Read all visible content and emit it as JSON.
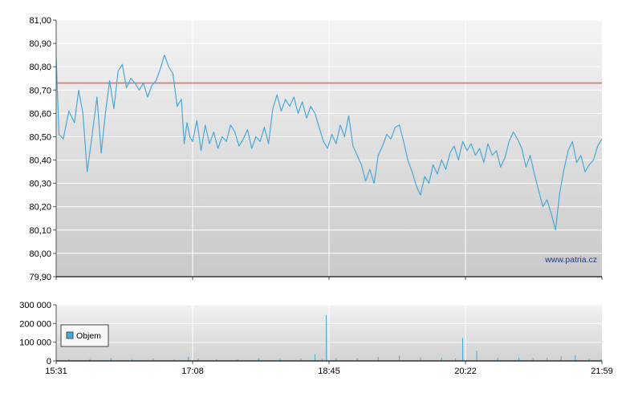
{
  "chart_data": [
    {
      "type": "line",
      "title": "",
      "xlabel": "",
      "ylabel": "",
      "ylim": [
        79.9,
        81.0
      ],
      "y_ticks": [
        79.9,
        80.0,
        80.1,
        80.2,
        80.3,
        80.4,
        80.5,
        80.6,
        80.7,
        80.8,
        80.9,
        81.0
      ],
      "y_tick_labels": [
        "79,90",
        "80,00",
        "80,10",
        "80,20",
        "80,30",
        "80,40",
        "80,50",
        "80,60",
        "80,70",
        "80,80",
        "80,90",
        "81,00"
      ],
      "x_tick_labels": [
        "15:31",
        "17:08",
        "18:45",
        "20:22",
        "21:59"
      ],
      "grid": true,
      "reference_line": {
        "value": 80.73,
        "color": "#e06666"
      },
      "watermark": "www.patria.cz",
      "line_color": "#4aa8d8",
      "series": [
        {
          "x": [
            "15:31",
            "15:33",
            "15:36",
            "15:40",
            "15:44",
            "15:47",
            "15:50",
            "15:53",
            "15:56",
            "16:00",
            "16:03",
            "16:06",
            "16:09",
            "16:12",
            "16:15",
            "16:18",
            "16:21",
            "16:24",
            "16:27",
            "16:30",
            "16:33",
            "16:36",
            "16:39",
            "16:42",
            "16:45",
            "16:48",
            "16:51",
            "16:54",
            "16:57",
            "17:00",
            "17:02",
            "17:04",
            "17:06",
            "17:08",
            "17:11",
            "17:14",
            "17:17",
            "17:20",
            "17:23",
            "17:26",
            "17:29",
            "17:32",
            "17:35",
            "17:38",
            "17:41",
            "17:44",
            "17:47",
            "17:50",
            "17:53",
            "17:56",
            "17:59",
            "18:02",
            "18:05",
            "18:08",
            "18:11",
            "18:14",
            "18:17",
            "18:20",
            "18:23",
            "18:26",
            "18:29",
            "18:32",
            "18:35",
            "18:38",
            "18:41",
            "18:44",
            "18:47",
            "18:50",
            "18:53",
            "18:56",
            "18:59",
            "19:02",
            "19:05",
            "19:08",
            "19:11",
            "19:14",
            "19:17",
            "19:20",
            "19:23",
            "19:26",
            "19:29",
            "19:32",
            "19:35",
            "19:38",
            "19:41",
            "19:44",
            "19:47",
            "19:50",
            "19:53",
            "19:56",
            "19:59",
            "20:02",
            "20:05",
            "20:08",
            "20:11",
            "20:14",
            "20:17",
            "20:20",
            "20:23",
            "20:26",
            "20:29",
            "20:32",
            "20:35",
            "20:38",
            "20:41",
            "20:44",
            "20:47",
            "20:50",
            "20:53",
            "20:56",
            "20:59",
            "21:02",
            "21:05",
            "21:08",
            "21:11",
            "21:14",
            "21:17",
            "21:20",
            "21:23",
            "21:26",
            "21:29",
            "21:32",
            "21:35",
            "21:38",
            "21:41",
            "21:44",
            "21:47",
            "21:50",
            "21:53",
            "21:56",
            "21:59"
          ],
          "values": [
            80.84,
            80.51,
            80.49,
            80.61,
            80.56,
            80.7,
            80.6,
            80.35,
            80.48,
            80.67,
            80.43,
            80.6,
            80.74,
            80.62,
            80.78,
            80.81,
            80.71,
            80.75,
            80.73,
            80.7,
            80.73,
            80.67,
            80.72,
            80.74,
            80.79,
            80.85,
            80.8,
            80.77,
            80.63,
            80.66,
            80.47,
            80.56,
            80.5,
            80.48,
            80.57,
            80.44,
            80.55,
            80.47,
            80.52,
            80.45,
            80.5,
            80.48,
            80.55,
            80.52,
            80.46,
            80.49,
            80.53,
            80.45,
            80.5,
            80.48,
            80.54,
            80.47,
            80.62,
            80.68,
            80.61,
            80.66,
            80.63,
            80.67,
            80.6,
            80.65,
            80.58,
            80.63,
            80.6,
            80.54,
            80.48,
            80.45,
            80.51,
            80.47,
            80.55,
            80.5,
            80.59,
            80.46,
            80.42,
            80.38,
            80.31,
            80.36,
            80.3,
            80.42,
            80.46,
            80.51,
            80.49,
            80.54,
            80.55,
            80.48,
            80.4,
            80.35,
            80.29,
            80.25,
            80.33,
            80.3,
            80.38,
            80.34,
            80.4,
            80.36,
            80.43,
            80.46,
            80.4,
            80.48,
            80.44,
            80.47,
            80.42,
            80.45,
            80.39,
            80.47,
            80.42,
            80.44,
            80.37,
            80.41,
            80.48,
            80.52,
            80.49,
            80.45,
            80.37,
            80.42,
            80.34,
            80.27,
            80.2,
            80.23,
            80.17,
            80.1,
            80.26,
            80.36,
            80.44,
            80.48,
            80.39,
            80.42,
            80.35,
            80.38,
            80.4,
            80.46,
            80.49
          ]
        }
      ]
    },
    {
      "type": "bar",
      "title": "",
      "xlabel": "",
      "ylabel": "",
      "ylim": [
        0,
        300000
      ],
      "y_ticks": [
        0,
        100000,
        200000,
        300000
      ],
      "y_tick_labels": [
        "0",
        "100 000",
        "200 000",
        "300 000"
      ],
      "x_tick_labels": [
        "15:31",
        "17:08",
        "18:45",
        "20:22",
        "21:59"
      ],
      "grid": true,
      "legend": {
        "position": "left",
        "label": "Objem",
        "color": "#4aa8d8"
      },
      "bar_color": "#4aa8d8",
      "series": [
        {
          "name": "Objem",
          "x": [
            "15:40",
            "15:55",
            "16:10",
            "16:25",
            "16:40",
            "16:55",
            "17:05",
            "17:12",
            "17:25",
            "17:40",
            "17:55",
            "18:10",
            "18:25",
            "18:35",
            "18:40",
            "18:43",
            "18:50",
            "19:05",
            "19:20",
            "19:35",
            "19:50",
            "20:05",
            "20:15",
            "20:20",
            "20:30",
            "20:45",
            "21:00",
            "21:10",
            "21:20",
            "21:30",
            "21:40",
            "21:50",
            "21:58"
          ],
          "values": [
            9000,
            11000,
            14000,
            10000,
            13000,
            9000,
            22000,
            12000,
            10000,
            9000,
            14000,
            12000,
            13000,
            36000,
            11000,
            245000,
            15000,
            14000,
            21000,
            28000,
            19000,
            17000,
            13000,
            122000,
            55000,
            16000,
            18000,
            14000,
            15000,
            24000,
            29000,
            12000,
            8000
          ]
        }
      ]
    }
  ]
}
